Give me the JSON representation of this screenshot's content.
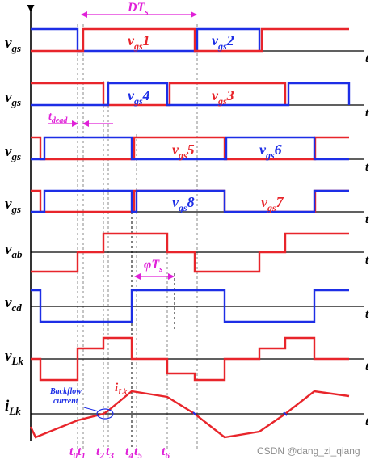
{
  "colors": {
    "red": "#e8252b",
    "blue": "#1d2ee6",
    "magenta": "#e020d8",
    "axis": "#000000",
    "grid": "#8a8a8a"
  },
  "rows": [
    {
      "y_label": {
        "main": "v",
        "sub": "gs"
      },
      "axis_end": "t",
      "annotations": [
        {
          "main": "v",
          "sub": "gs",
          "tail": "1",
          "color": "red"
        },
        {
          "main": "v",
          "sub": "gs",
          "tail": "2",
          "color": "blue"
        }
      ]
    },
    {
      "y_label": {
        "main": "v",
        "sub": "gs"
      },
      "axis_end": "t",
      "annotations": [
        {
          "main": "v",
          "sub": "gs",
          "tail": "4",
          "color": "blue"
        },
        {
          "main": "v",
          "sub": "gs",
          "tail": "3",
          "color": "red"
        }
      ]
    },
    {
      "y_label": {
        "main": "v",
        "sub": "gs"
      },
      "axis_end": "t",
      "annotations": [
        {
          "main": "v",
          "sub": "gs",
          "tail": "5",
          "color": "red"
        },
        {
          "main": "v",
          "sub": "gs",
          "tail": "6",
          "color": "blue"
        }
      ]
    },
    {
      "y_label": {
        "main": "v",
        "sub": "gs"
      },
      "axis_end": "t",
      "annotations": [
        {
          "main": "v",
          "sub": "gs",
          "tail": "8",
          "color": "blue"
        },
        {
          "main": "v",
          "sub": "gs",
          "tail": "7",
          "color": "red"
        }
      ]
    },
    {
      "y_label": {
        "main": "v",
        "sub": "ab"
      },
      "axis_end": "t",
      "annotations": []
    },
    {
      "y_label": {
        "main": "v",
        "sub": "cd"
      },
      "axis_end": "t",
      "annotations": []
    },
    {
      "y_label": {
        "main": "v",
        "sub": "Lk"
      },
      "axis_end": "t",
      "annotations": []
    },
    {
      "y_label": {
        "main": "i",
        "sub": "Lk"
      },
      "axis_end": "t",
      "annotations": []
    }
  ],
  "markers": {
    "dt": {
      "main": "DT",
      "sub": "s"
    },
    "dead": {
      "main": "t",
      "sub": "dead"
    },
    "phi": {
      "main": "φT",
      "sub": "s"
    },
    "ilk": {
      "main": "i",
      "sub": "Lk"
    },
    "backflow": [
      "Backflow",
      "current"
    ]
  },
  "time_labels": [
    {
      "main": "t",
      "sub": "0"
    },
    {
      "main": "t",
      "sub": "1"
    },
    {
      "main": "t",
      "sub": "2"
    },
    {
      "main": "t",
      "sub": "3"
    },
    {
      "main": "t",
      "sub": "4"
    },
    {
      "main": "t",
      "sub": "5"
    },
    {
      "main": "t",
      "sub": "6"
    }
  ],
  "watermark": "CSDN @dang_zi_qiang"
}
